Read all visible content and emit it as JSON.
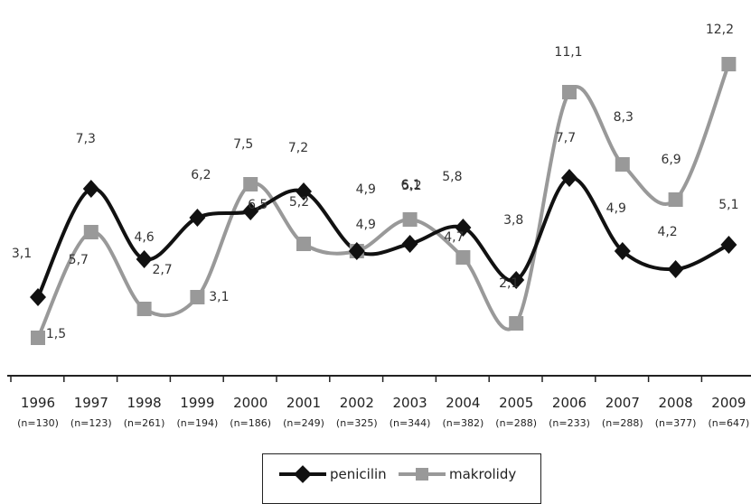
{
  "chart_data": {
    "type": "line",
    "title": "",
    "xlabel": "",
    "ylabel": "",
    "categories": [
      "1996",
      "1997",
      "1998",
      "1999",
      "2000",
      "2001",
      "2002",
      "2003",
      "2004",
      "2005",
      "2006",
      "2007",
      "2008",
      "2009"
    ],
    "sample_sizes": [
      "(n=130)",
      "(n=123)",
      "(n=261)",
      "(n=194)",
      "(n=186)",
      "(n=249)",
      "(n=325)",
      "(n=344)",
      "(n=382)",
      "(n=288)",
      "(n=233)",
      "(n=288)",
      "(n=377)",
      "(n=647)"
    ],
    "series": [
      {
        "name": "penicilin",
        "color": "#111111",
        "marker": "diamond",
        "values": [
          3.1,
          7.3,
          4.6,
          6.2,
          6.5,
          7.2,
          4.9,
          5.2,
          5.8,
          3.8,
          7.7,
          4.9,
          4.2,
          5.1
        ],
        "labels": [
          "3,1",
          "7,3",
          "4,6",
          "6,2",
          "6,5",
          "7,2",
          "4,9",
          "5,2",
          "5,8",
          "3,8",
          "7,7",
          "4,9",
          "4,2",
          "5,1"
        ]
      },
      {
        "name": "makrolidy",
        "color": "#999999",
        "marker": "square",
        "values": [
          1.5,
          5.7,
          2.7,
          3.1,
          7.5,
          5.2,
          4.9,
          6.1,
          4.7,
          2.1,
          11.1,
          8.3,
          6.9,
          12.2
        ],
        "labels": [
          "1,5",
          "5,7",
          "2,7",
          "3,1",
          "7,5",
          "5,2",
          "4,9",
          "6,1",
          "4,7",
          "2,1",
          "11,1",
          "8,3",
          "6,9",
          "12,2"
        ]
      }
    ],
    "grid": false,
    "legend_position": "bottom"
  }
}
